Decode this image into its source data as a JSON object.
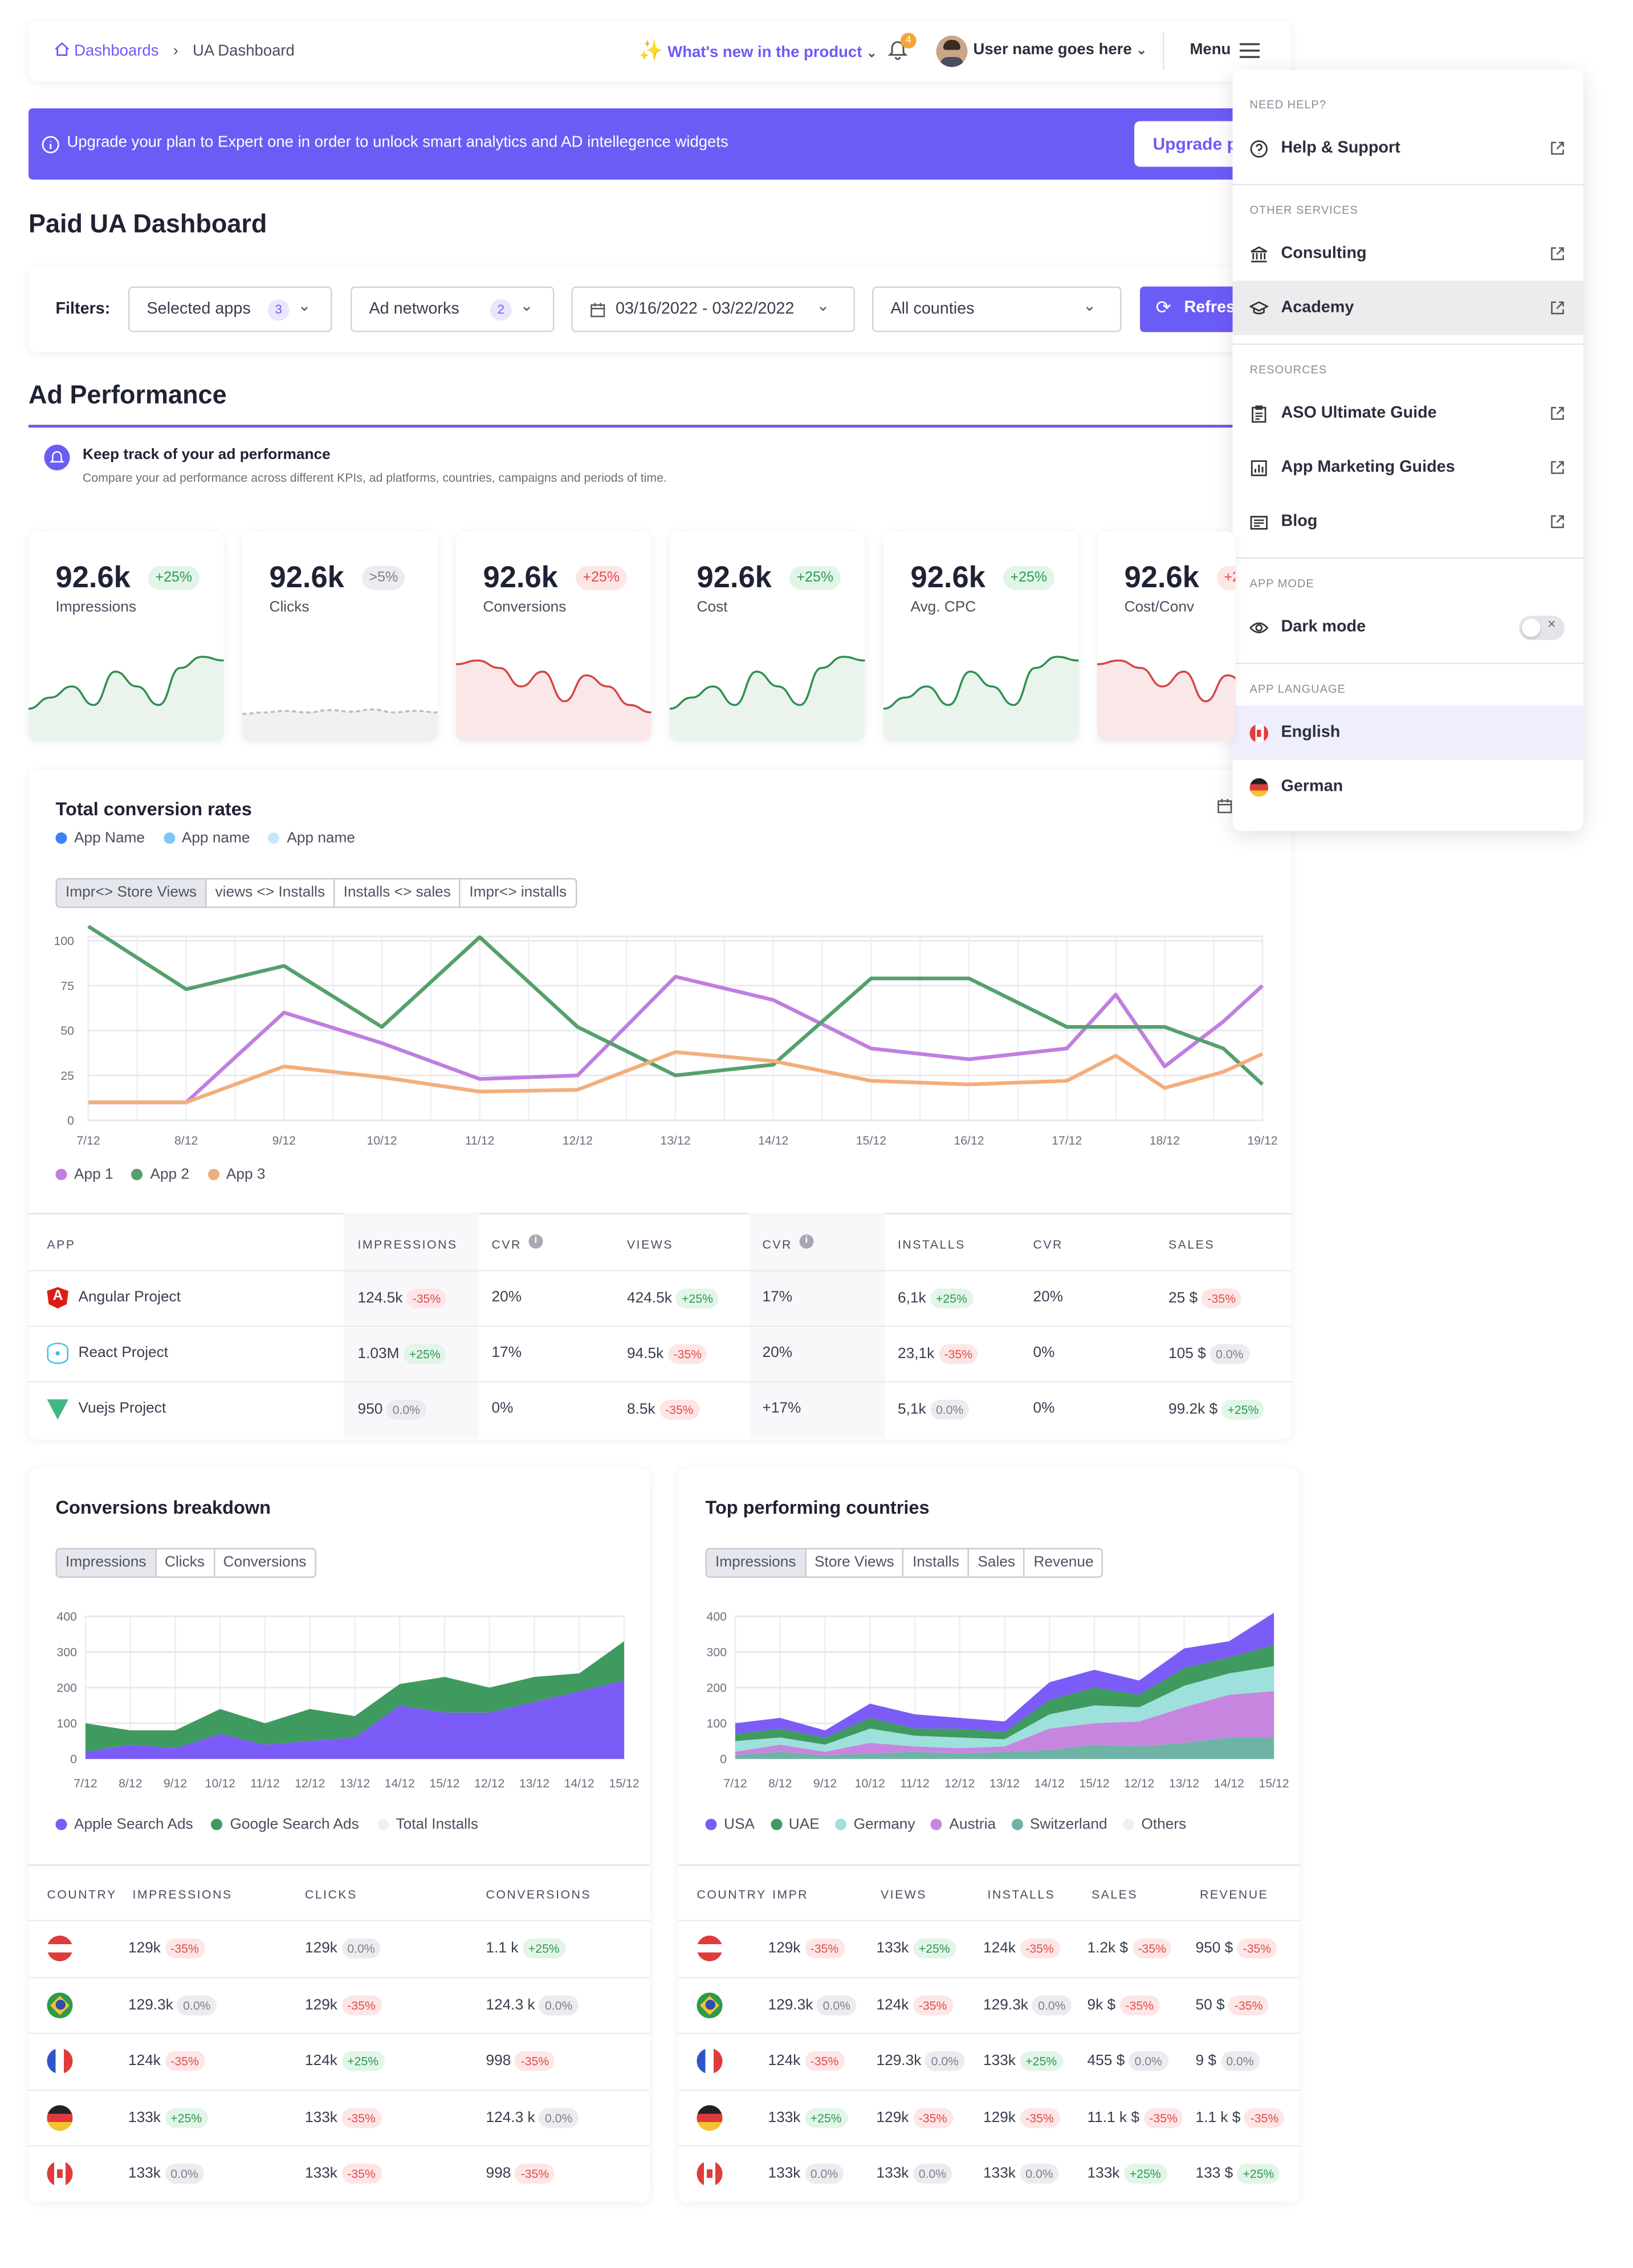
{
  "topbar": {
    "breadcrumb_root": "Dashboards",
    "breadcrumb_current": "UA Dashboard",
    "whats_new": "What's new in the product",
    "notif_count": "4",
    "user_name": "User name goes here",
    "menu_label": "Menu"
  },
  "banner": {
    "text": "Upgrade your plan to Expert one in order to unlock smart analytics and AD intellegence widgets",
    "button": "Upgrade p"
  },
  "page_title": "Paid UA Dashboard",
  "filters": {
    "label": "Filters:",
    "apps": "Selected apps",
    "apps_count": "3",
    "networks": "Ad networks",
    "networks_count": "2",
    "dates": "03/16/2022 - 03/22/2022",
    "countries": "All counties",
    "refresh": "Refres"
  },
  "ad_performance": {
    "title": "Ad Performance",
    "info_title": "Keep track of your ad performance",
    "info_sub": "Compare your ad performance across different KPIs, ad platforms, countries, campaigns and periods of time."
  },
  "kpis": [
    {
      "value": "92.6k",
      "badge": "+25%",
      "label": "Impressions",
      "trend": "up"
    },
    {
      "value": "92.6k",
      "badge": ">5%",
      "label": "Clicks",
      "trend": "flat"
    },
    {
      "value": "92.6k",
      "badge": "+25%",
      "label": "Conversions",
      "trend": "down"
    },
    {
      "value": "92.6k",
      "badge": "+25%",
      "label": "Cost",
      "trend": "up"
    },
    {
      "value": "92.6k",
      "badge": "+25%",
      "label": "Avg. CPC",
      "trend": "up"
    },
    {
      "value": "92.6k",
      "badge": "+2",
      "label": "Cost/Conv",
      "trend": "down"
    }
  ],
  "total_conversion": {
    "title": "Total conversion rates",
    "legend": [
      "App Name",
      "App name",
      "App name"
    ],
    "tabs": [
      "Impr<> Store Views",
      "views <> Installs",
      "Installs  <> sales",
      "Impr<> installs"
    ],
    "series_legend": [
      "App 1",
      "App 2",
      "App 3"
    ]
  },
  "app_table": {
    "headers": [
      "APP",
      "IMPRESSIONS",
      "CVR",
      "VIEWS",
      "CVR",
      "INSTALLS",
      "CVR",
      "SALES"
    ],
    "rows": [
      {
        "app": "Angular Project",
        "impr": "124.5k",
        "impr_b": "-35%",
        "cvr1": "20%",
        "views": "424.5k",
        "views_b": "+25%",
        "cvr2": "17%",
        "installs": "6,1k",
        "installs_b": "+25%",
        "cvr3": "20%",
        "sales": "25 $",
        "sales_b": "-35%"
      },
      {
        "app": "React Project",
        "impr": "1.03M",
        "impr_b": "+25%",
        "cvr1": "17%",
        "views": "94.5k",
        "views_b": "-35%",
        "cvr2": "20%",
        "installs": "23,1k",
        "installs_b": "-35%",
        "cvr3": "0%",
        "sales": "105 $",
        "sales_b": "0.0%"
      },
      {
        "app": "Vuejs Project",
        "impr": "950",
        "impr_b": "0.0%",
        "cvr1": "0%",
        "views": "8.5k",
        "views_b": "-35%",
        "cvr2": "+17%",
        "installs": "5,1k",
        "installs_b": "0.0%",
        "cvr3": "0%",
        "sales": "99.2k $",
        "sales_b": "+25%"
      }
    ]
  },
  "conversions_breakdown": {
    "title": "Conversions breakdown",
    "tabs": [
      "Impressions",
      "Clicks",
      "Conversions"
    ],
    "legend": [
      "Apple Search Ads",
      "Google Search Ads",
      "Total Installs"
    ],
    "headers": [
      "COUNTRY",
      "IMPRESSIONS",
      "CLICKS",
      "CONVERSIONS"
    ],
    "rows": [
      {
        "country": "Austria",
        "impr": "129k",
        "impr_b": "-35%",
        "clicks": "129k",
        "clicks_b": "0.0%",
        "conv": "1.1 k",
        "conv_b": "+25%"
      },
      {
        "country": "Brazil",
        "impr": "129.3k",
        "impr_b": "0.0%",
        "clicks": "129k",
        "clicks_b": "-35%",
        "conv": "124.3 k",
        "conv_b": "0.0%"
      },
      {
        "country": "France",
        "impr": "124k",
        "impr_b": "-35%",
        "clicks": "124k",
        "clicks_b": "+25%",
        "conv": "998",
        "conv_b": "-35%"
      },
      {
        "country": "Germany",
        "impr": "133k",
        "impr_b": "+25%",
        "clicks": "133k",
        "clicks_b": "-35%",
        "conv": "124.3 k",
        "conv_b": "0.0%"
      },
      {
        "country": "Canada",
        "impr": "133k",
        "impr_b": "0.0%",
        "clicks": "133k",
        "clicks_b": "-35%",
        "conv": "998",
        "conv_b": "-35%"
      }
    ]
  },
  "top_countries": {
    "title": "Top performing countries",
    "tabs": [
      "Impressions",
      "Store Views",
      "Installs",
      "Sales",
      "Revenue"
    ],
    "legend": [
      "USA",
      "UAE",
      "Germany",
      "Austria",
      "Switzerland",
      "Others"
    ],
    "headers": [
      "COUNTRY",
      "IMPR",
      "VIEWS",
      "INSTALLS",
      "SALES",
      "REVENUE"
    ],
    "rows": [
      {
        "impr": "129k",
        "impr_b": "-35%",
        "views": "133k",
        "views_b": "+25%",
        "installs": "124k",
        "installs_b": "-35%",
        "sales": "1.2k $",
        "sales_b": "-35%",
        "rev": "950 $",
        "rev_b": "-35%"
      },
      {
        "impr": "129.3k",
        "impr_b": "0.0%",
        "views": "124k",
        "views_b": "-35%",
        "installs": "129.3k",
        "installs_b": "0.0%",
        "sales": "9k $",
        "sales_b": "-35%",
        "rev": "50 $",
        "rev_b": "-35%"
      },
      {
        "impr": "124k",
        "impr_b": "-35%",
        "views": "129.3k",
        "views_b": "0.0%",
        "installs": "133k",
        "installs_b": "+25%",
        "sales": "455 $",
        "sales_b": "0.0%",
        "rev": "9 $",
        "rev_b": "0.0%"
      },
      {
        "impr": "133k",
        "impr_b": "+25%",
        "views": "129k",
        "views_b": "-35%",
        "installs": "129k",
        "installs_b": "-35%",
        "sales": "11.1 k $",
        "sales_b": "-35%",
        "rev": "1.1 k $",
        "rev_b": "-35%"
      },
      {
        "impr": "133k",
        "impr_b": "0.0%",
        "views": "133k",
        "views_b": "0.0%",
        "installs": "133k",
        "installs_b": "0.0%",
        "sales": "133k",
        "sales_b": "+25%",
        "rev": "133 $",
        "rev_b": "+25%"
      }
    ]
  },
  "dropdown": {
    "need_help": "NEED HELP?",
    "help": "Help & Support",
    "other_services": "OTHER SERVICES",
    "consulting": "Consulting",
    "academy": "Academy",
    "resources": "RESOURCES",
    "aso": "ASO Ultimate Guide",
    "guides": "App Marketing Guides",
    "blog": "Blog",
    "app_mode": "APP MODE",
    "dark_mode": "Dark mode",
    "app_language": "APP LANGUAGE",
    "english": "English",
    "german": "German"
  },
  "colors": {
    "accent": "#6c5cf6",
    "green": "#2f8f4f",
    "red": "#d64545",
    "purple_line": "#c07ee0",
    "green_line": "#55a06c",
    "orange_line": "#f2ae7c"
  },
  "chart_data": [
    {
      "type": "line",
      "title": "Total conversion rates",
      "categories": [
        "7/12",
        "8/12",
        "9/12",
        "10/12",
        "11/12",
        "12/12",
        "13/12",
        "14/12",
        "15/12",
        "16/12",
        "17/12",
        "18/12",
        "19/12"
      ],
      "ylim": [
        0,
        100
      ],
      "yticks": [
        0,
        25,
        50,
        75,
        100
      ],
      "x": [
        0,
        1,
        2,
        3,
        4,
        5,
        6,
        7,
        8,
        9,
        10,
        10.5,
        11,
        11.6,
        12
      ],
      "series": [
        {
          "name": "App 1",
          "color": "#c07ee0",
          "values": [
            10,
            10,
            60,
            43,
            23,
            25,
            80,
            67,
            40,
            34,
            40,
            70,
            30,
            55,
            75
          ]
        },
        {
          "name": "App 2",
          "color": "#55a06c",
          "values": [
            108,
            73,
            86,
            52,
            102,
            52,
            25,
            31,
            79,
            79,
            52,
            52,
            52,
            40,
            20
          ]
        },
        {
          "name": "App 3",
          "color": "#f2ae7c",
          "values": [
            10,
            10,
            30,
            24,
            16,
            17,
            38,
            33,
            22,
            20,
            22,
            36,
            18,
            27,
            37
          ]
        }
      ]
    },
    {
      "type": "area",
      "title": "Conversions breakdown",
      "categories": [
        "7/12",
        "8/12",
        "9/12",
        "10/12",
        "11/12",
        "12/12",
        "13/12",
        "14/12",
        "15/12",
        "12/12",
        "13/12",
        "14/12",
        "15/12"
      ],
      "ylim": [
        0,
        400
      ],
      "yticks": [
        0,
        100,
        200,
        300,
        400
      ],
      "series": [
        {
          "name": "Apple Search Ads",
          "color": "#7b5cf6",
          "values": [
            20,
            40,
            30,
            70,
            40,
            50,
            60,
            150,
            130,
            130,
            160,
            190,
            220
          ]
        },
        {
          "name": "Google Search Ads",
          "color": "#3f9a5f",
          "values": [
            80,
            40,
            50,
            70,
            60,
            90,
            60,
            60,
            100,
            70,
            70,
            50,
            110
          ]
        },
        {
          "name": "Total Installs",
          "color": "#eef1ef",
          "values": [
            0,
            0,
            0,
            0,
            0,
            0,
            0,
            0,
            0,
            0,
            0,
            0,
            0
          ]
        }
      ]
    },
    {
      "type": "area",
      "title": "Top performing countries",
      "categories": [
        "7/12",
        "8/12",
        "9/12",
        "10/12",
        "11/12",
        "12/12",
        "13/12",
        "14/12",
        "15/12",
        "12/12",
        "13/12",
        "14/12",
        "15/12"
      ],
      "ylim": [
        0,
        400
      ],
      "yticks": [
        0,
        100,
        200,
        300,
        400
      ],
      "series": [
        {
          "name": "Switzerland",
          "color": "#6fb3a7",
          "values": [
            10,
            20,
            10,
            15,
            20,
            15,
            20,
            25,
            40,
            35,
            45,
            60,
            60
          ]
        },
        {
          "name": "Austria",
          "color": "#c686e0",
          "values": [
            10,
            20,
            10,
            30,
            15,
            15,
            15,
            60,
            60,
            70,
            100,
            120,
            130
          ]
        },
        {
          "name": "Germany",
          "color": "#9ee0dc",
          "values": [
            30,
            20,
            20,
            40,
            30,
            30,
            20,
            40,
            50,
            40,
            60,
            60,
            70
          ]
        },
        {
          "name": "UAE",
          "color": "#3f9a5f",
          "values": [
            20,
            25,
            20,
            30,
            20,
            25,
            20,
            40,
            50,
            35,
            50,
            45,
            60
          ]
        },
        {
          "name": "USA",
          "color": "#7b5cf6",
          "values": [
            30,
            30,
            20,
            40,
            40,
            30,
            30,
            50,
            50,
            40,
            55,
            45,
            90
          ]
        },
        {
          "name": "Others",
          "color": "#eef1ef",
          "values": [
            0,
            0,
            0,
            0,
            0,
            0,
            0,
            0,
            0,
            0,
            0,
            0,
            0
          ]
        }
      ]
    }
  ]
}
